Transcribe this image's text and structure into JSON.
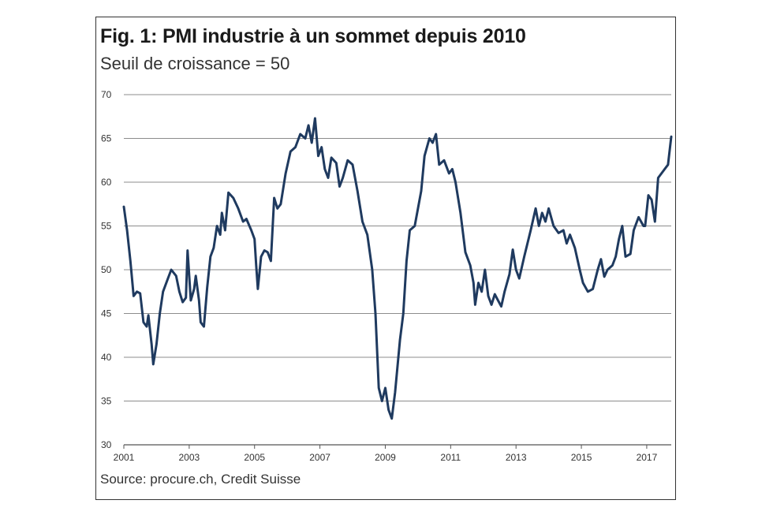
{
  "title": "Fig. 1: PMI industrie à un sommet depuis 2010",
  "subtitle": "Seuil de croissance = 50",
  "source": "Source: procure.ch, Credit Suisse",
  "colors": {
    "line": "#1f3a5f",
    "grid": "#8c8c8c",
    "frame": "#333333"
  },
  "chart_data": {
    "type": "line",
    "title": "Fig. 1: PMI industrie à un sommet depuis 2010",
    "subtitle": "Seuil de croissance = 50",
    "xlabel": "",
    "ylabel": "",
    "xlim": [
      2001,
      2017.75
    ],
    "ylim": [
      30,
      70
    ],
    "xticks": [
      2001,
      2003,
      2005,
      2007,
      2009,
      2011,
      2013,
      2015,
      2017
    ],
    "xtick_labels": [
      "2001",
      "2003",
      "2005",
      "2007",
      "2009",
      "2011",
      "2013",
      "2015",
      "2017"
    ],
    "yticks": [
      30,
      35,
      40,
      45,
      50,
      55,
      60,
      65,
      70
    ],
    "ytick_labels": [
      "30",
      "35",
      "40",
      "45",
      "50",
      "55",
      "60",
      "65",
      "70"
    ],
    "grid": "horizontal",
    "series": [
      {
        "values": [
          [
            2001.0,
            57.2
          ],
          [
            2001.1,
            54.5
          ],
          [
            2001.2,
            51.0
          ],
          [
            2001.3,
            47.0
          ],
          [
            2001.4,
            47.5
          ],
          [
            2001.5,
            47.3
          ],
          [
            2001.6,
            44.0
          ],
          [
            2001.7,
            43.5
          ],
          [
            2001.75,
            44.8
          ],
          [
            2001.85,
            41.5
          ],
          [
            2001.9,
            39.2
          ],
          [
            2002.0,
            41.5
          ],
          [
            2002.1,
            45.0
          ],
          [
            2002.2,
            47.5
          ],
          [
            2002.35,
            49.0
          ],
          [
            2002.45,
            50.0
          ],
          [
            2002.6,
            49.3
          ],
          [
            2002.7,
            47.5
          ],
          [
            2002.8,
            46.3
          ],
          [
            2002.9,
            46.8
          ],
          [
            2002.95,
            52.2
          ],
          [
            2003.05,
            46.5
          ],
          [
            2003.15,
            47.8
          ],
          [
            2003.2,
            49.3
          ],
          [
            2003.3,
            46.5
          ],
          [
            2003.35,
            44.0
          ],
          [
            2003.45,
            43.5
          ],
          [
            2003.55,
            48.0
          ],
          [
            2003.65,
            51.5
          ],
          [
            2003.75,
            52.5
          ],
          [
            2003.85,
            55.0
          ],
          [
            2003.95,
            54.0
          ],
          [
            2004.0,
            56.5
          ],
          [
            2004.1,
            54.5
          ],
          [
            2004.2,
            58.8
          ],
          [
            2004.35,
            58.2
          ],
          [
            2004.5,
            57.0
          ],
          [
            2004.65,
            55.5
          ],
          [
            2004.75,
            55.8
          ],
          [
            2004.9,
            54.5
          ],
          [
            2005.0,
            53.5
          ],
          [
            2005.05,
            50.5
          ],
          [
            2005.1,
            47.8
          ],
          [
            2005.2,
            51.5
          ],
          [
            2005.3,
            52.2
          ],
          [
            2005.4,
            52.0
          ],
          [
            2005.5,
            51.0
          ],
          [
            2005.6,
            58.2
          ],
          [
            2005.7,
            57.0
          ],
          [
            2005.8,
            57.5
          ],
          [
            2005.95,
            61.0
          ],
          [
            2006.1,
            63.5
          ],
          [
            2006.25,
            64.0
          ],
          [
            2006.4,
            65.5
          ],
          [
            2006.55,
            65.0
          ],
          [
            2006.65,
            66.5
          ],
          [
            2006.75,
            64.5
          ],
          [
            2006.85,
            67.3
          ],
          [
            2006.95,
            63.0
          ],
          [
            2007.05,
            64.0
          ],
          [
            2007.15,
            61.5
          ],
          [
            2007.25,
            60.5
          ],
          [
            2007.35,
            62.8
          ],
          [
            2007.5,
            62.2
          ],
          [
            2007.6,
            59.5
          ],
          [
            2007.7,
            60.5
          ],
          [
            2007.85,
            62.5
          ],
          [
            2008.0,
            62.0
          ],
          [
            2008.15,
            59.0
          ],
          [
            2008.3,
            55.5
          ],
          [
            2008.45,
            54.0
          ],
          [
            2008.6,
            50.0
          ],
          [
            2008.7,
            45.0
          ],
          [
            2008.8,
            36.5
          ],
          [
            2008.9,
            35.0
          ],
          [
            2009.0,
            36.5
          ],
          [
            2009.1,
            34.0
          ],
          [
            2009.2,
            33.0
          ],
          [
            2009.3,
            36.0
          ],
          [
            2009.45,
            42.0
          ],
          [
            2009.55,
            45.0
          ],
          [
            2009.65,
            51.0
          ],
          [
            2009.75,
            54.5
          ],
          [
            2009.9,
            55.0
          ],
          [
            2010.0,
            57.0
          ],
          [
            2010.1,
            59.0
          ],
          [
            2010.2,
            63.0
          ],
          [
            2010.35,
            65.0
          ],
          [
            2010.45,
            64.5
          ],
          [
            2010.55,
            65.5
          ],
          [
            2010.65,
            62.0
          ],
          [
            2010.8,
            62.5
          ],
          [
            2010.95,
            61.0
          ],
          [
            2011.05,
            61.5
          ],
          [
            2011.15,
            60.0
          ],
          [
            2011.3,
            56.5
          ],
          [
            2011.45,
            52.0
          ],
          [
            2011.6,
            50.5
          ],
          [
            2011.7,
            48.5
          ],
          [
            2011.75,
            46.0
          ],
          [
            2011.85,
            48.5
          ],
          [
            2011.95,
            47.5
          ],
          [
            2012.05,
            50.0
          ],
          [
            2012.15,
            47.0
          ],
          [
            2012.25,
            46.0
          ],
          [
            2012.35,
            47.2
          ],
          [
            2012.45,
            46.5
          ],
          [
            2012.55,
            45.8
          ],
          [
            2012.65,
            47.5
          ],
          [
            2012.8,
            49.5
          ],
          [
            2012.9,
            52.3
          ],
          [
            2013.0,
            50.0
          ],
          [
            2013.1,
            49.0
          ],
          [
            2013.25,
            51.5
          ],
          [
            2013.45,
            54.5
          ],
          [
            2013.6,
            57.0
          ],
          [
            2013.7,
            55.0
          ],
          [
            2013.8,
            56.5
          ],
          [
            2013.9,
            55.5
          ],
          [
            2014.0,
            57.0
          ],
          [
            2014.15,
            55.0
          ],
          [
            2014.3,
            54.2
          ],
          [
            2014.45,
            54.5
          ],
          [
            2014.55,
            53.0
          ],
          [
            2014.65,
            54.0
          ],
          [
            2014.8,
            52.5
          ],
          [
            2014.95,
            50.0
          ],
          [
            2015.05,
            48.5
          ],
          [
            2015.2,
            47.5
          ],
          [
            2015.35,
            47.8
          ],
          [
            2015.5,
            50.0
          ],
          [
            2015.6,
            51.2
          ],
          [
            2015.7,
            49.2
          ],
          [
            2015.8,
            50.0
          ],
          [
            2015.95,
            50.5
          ],
          [
            2016.05,
            51.5
          ],
          [
            2016.15,
            53.5
          ],
          [
            2016.25,
            55.0
          ],
          [
            2016.35,
            51.5
          ],
          [
            2016.5,
            51.8
          ],
          [
            2016.6,
            54.5
          ],
          [
            2016.75,
            56.0
          ],
          [
            2016.9,
            55.0
          ],
          [
            2016.95,
            55.0
          ],
          [
            2017.05,
            58.5
          ],
          [
            2017.15,
            58.0
          ],
          [
            2017.25,
            55.5
          ],
          [
            2017.35,
            60.5
          ],
          [
            2017.45,
            61.0
          ],
          [
            2017.55,
            61.5
          ],
          [
            2017.65,
            62.0
          ],
          [
            2017.75,
            65.2
          ]
        ]
      }
    ]
  }
}
